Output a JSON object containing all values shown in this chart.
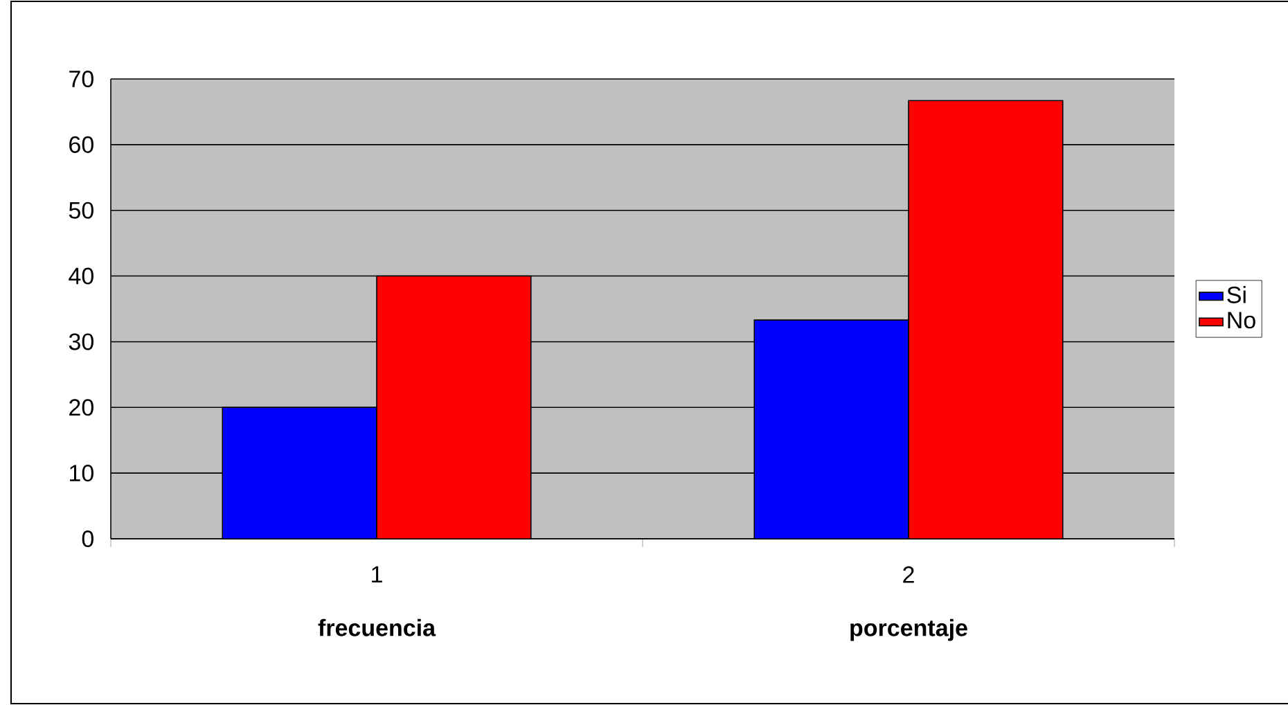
{
  "chart_data": {
    "type": "bar",
    "categories": [
      "1",
      "2"
    ],
    "series": [
      {
        "name": "Si",
        "color": "#0000ff",
        "values": [
          20,
          33.3
        ]
      },
      {
        "name": "No",
        "color": "#ff0000",
        "values": [
          40,
          66.7
        ]
      }
    ],
    "ylim": [
      0,
      70
    ],
    "yticks": [
      0,
      10,
      20,
      30,
      40,
      50,
      60,
      70
    ],
    "grid": "y",
    "legend": "right",
    "annotations": [
      "frecuencia",
      "porcentaje"
    ]
  }
}
